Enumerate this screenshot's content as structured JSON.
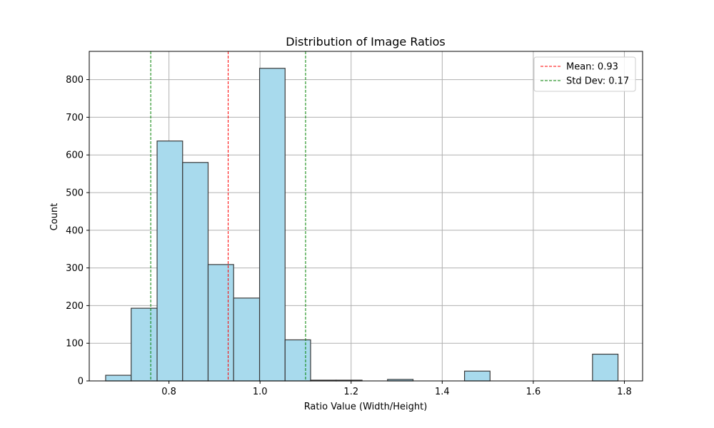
{
  "chart_data": {
    "type": "bar",
    "title": "Distribution of Image Ratios",
    "xlabel": "Ratio Value (Width/Height)",
    "ylabel": "Count",
    "xlim": [
      0.625,
      1.84
    ],
    "ylim": [
      0,
      875
    ],
    "xticks": [
      0.8,
      1.0,
      1.2,
      1.4,
      1.6,
      1.8
    ],
    "yticks": [
      0,
      100,
      200,
      300,
      400,
      500,
      600,
      700,
      800
    ],
    "grid": true,
    "legend_position": "top-right",
    "bar_color": "#a8daed",
    "bar_edge_color": "#3a3a3a",
    "bins": [
      {
        "x0": 0.661,
        "x1": 0.717,
        "count": 15
      },
      {
        "x0": 0.717,
        "x1": 0.774,
        "count": 193
      },
      {
        "x0": 0.774,
        "x1": 0.83,
        "count": 637
      },
      {
        "x0": 0.83,
        "x1": 0.886,
        "count": 580
      },
      {
        "x0": 0.886,
        "x1": 0.942,
        "count": 309
      },
      {
        "x0": 0.942,
        "x1": 0.999,
        "count": 220
      },
      {
        "x0": 0.999,
        "x1": 1.055,
        "count": 830
      },
      {
        "x0": 1.055,
        "x1": 1.111,
        "count": 109
      },
      {
        "x0": 1.111,
        "x1": 1.167,
        "count": 2
      },
      {
        "x0": 1.167,
        "x1": 1.224,
        "count": 2
      },
      {
        "x0": 1.224,
        "x1": 1.28,
        "count": 0
      },
      {
        "x0": 1.28,
        "x1": 1.336,
        "count": 4
      },
      {
        "x0": 1.336,
        "x1": 1.392,
        "count": 0
      },
      {
        "x0": 1.392,
        "x1": 1.449,
        "count": 0
      },
      {
        "x0": 1.449,
        "x1": 1.505,
        "count": 26
      },
      {
        "x0": 1.505,
        "x1": 1.561,
        "count": 0
      },
      {
        "x0": 1.561,
        "x1": 1.617,
        "count": 0
      },
      {
        "x0": 1.617,
        "x1": 1.674,
        "count": 0
      },
      {
        "x0": 1.674,
        "x1": 1.73,
        "count": 0
      },
      {
        "x0": 1.73,
        "x1": 1.786,
        "count": 71
      }
    ],
    "reference_lines": [
      {
        "x": 0.93,
        "label": "Mean: 0.93",
        "color": "#ff0000"
      },
      {
        "x": 0.76,
        "label": "Std Dev: 0.17",
        "color": "#008000"
      },
      {
        "x": 1.1,
        "label": "",
        "color": "#008000"
      }
    ],
    "legend": [
      {
        "label": "Mean: 0.93",
        "color": "#ff0000"
      },
      {
        "label": "Std Dev: 0.17",
        "color": "#008000"
      }
    ]
  }
}
